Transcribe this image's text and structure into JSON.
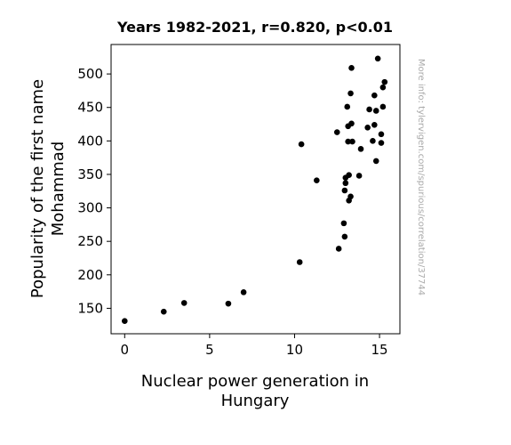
{
  "chart_data": {
    "type": "scatter",
    "title": "Years 1982-2021, r=0.820, p<0.01",
    "xlabel_lines": [
      "Nuclear power generation in",
      "Hungary"
    ],
    "ylabel_lines": [
      "Popularity of the first name",
      "Mohammad"
    ],
    "side_note": "More info: tylervigen.com/spurious/correlation/37744",
    "xlim": [
      -0.8,
      16.2
    ],
    "ylim": [
      112,
      544
    ],
    "xticks": [
      0,
      5,
      10,
      15
    ],
    "yticks": [
      150,
      200,
      250,
      300,
      350,
      400,
      450,
      500
    ],
    "grid": false,
    "marker_color": "#000000",
    "points": [
      {
        "x": 0.0,
        "y": 131
      },
      {
        "x": 2.3,
        "y": 145
      },
      {
        "x": 3.5,
        "y": 158
      },
      {
        "x": 6.1,
        "y": 157
      },
      {
        "x": 7.0,
        "y": 174
      },
      {
        "x": 10.3,
        "y": 219
      },
      {
        "x": 10.4,
        "y": 395
      },
      {
        "x": 11.3,
        "y": 341
      },
      {
        "x": 12.5,
        "y": 413
      },
      {
        "x": 12.6,
        "y": 239
      },
      {
        "x": 12.9,
        "y": 277
      },
      {
        "x": 12.95,
        "y": 257
      },
      {
        "x": 12.95,
        "y": 326
      },
      {
        "x": 13.0,
        "y": 345
      },
      {
        "x": 13.0,
        "y": 337
      },
      {
        "x": 13.1,
        "y": 451
      },
      {
        "x": 13.15,
        "y": 422
      },
      {
        "x": 13.15,
        "y": 399
      },
      {
        "x": 13.2,
        "y": 349
      },
      {
        "x": 13.2,
        "y": 311
      },
      {
        "x": 13.3,
        "y": 317
      },
      {
        "x": 13.3,
        "y": 471
      },
      {
        "x": 13.35,
        "y": 509
      },
      {
        "x": 13.35,
        "y": 426
      },
      {
        "x": 13.4,
        "y": 399
      },
      {
        "x": 13.8,
        "y": 348
      },
      {
        "x": 13.9,
        "y": 388
      },
      {
        "x": 14.3,
        "y": 420
      },
      {
        "x": 14.4,
        "y": 447
      },
      {
        "x": 14.6,
        "y": 400
      },
      {
        "x": 14.7,
        "y": 468
      },
      {
        "x": 14.7,
        "y": 424
      },
      {
        "x": 14.8,
        "y": 370
      },
      {
        "x": 14.8,
        "y": 445
      },
      {
        "x": 14.9,
        "y": 523
      },
      {
        "x": 15.1,
        "y": 410
      },
      {
        "x": 15.1,
        "y": 397
      },
      {
        "x": 15.2,
        "y": 451
      },
      {
        "x": 15.2,
        "y": 480
      },
      {
        "x": 15.3,
        "y": 488
      }
    ]
  }
}
